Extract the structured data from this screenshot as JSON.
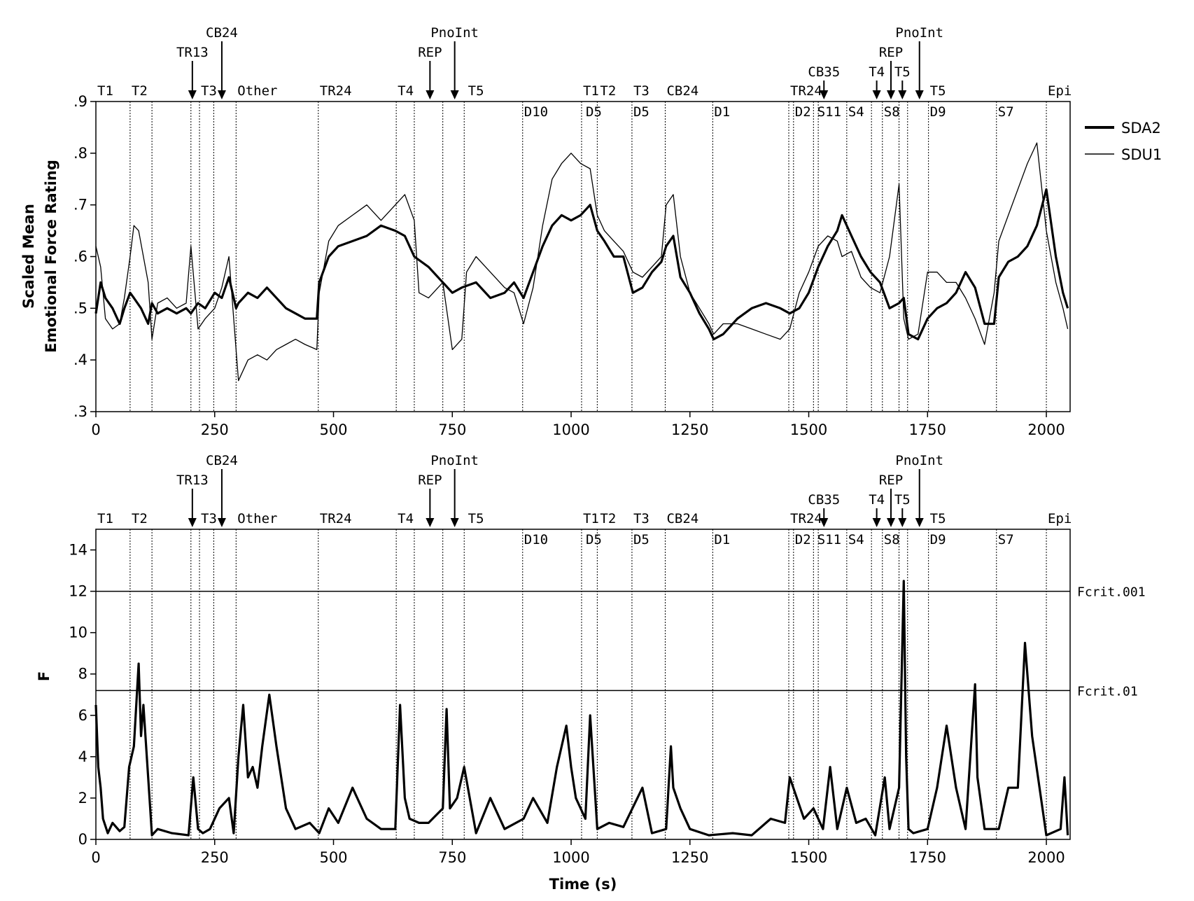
{
  "chart_data": [
    {
      "type": "line",
      "panel": "top",
      "ylabel_line1": "Scaled Mean",
      "ylabel_line2": "Emotional Force Rating",
      "xlim": [
        0,
        2050
      ],
      "ylim": [
        0.3,
        0.9
      ],
      "x_ticks": [
        0,
        250,
        500,
        750,
        1000,
        1250,
        1500,
        1750,
        2000
      ],
      "x_tick_labels": [
        "0",
        "250",
        "500",
        "750",
        "1000",
        "1250",
        "1500",
        "1750",
        "2000"
      ],
      "y_ticks": [
        0.3,
        0.4,
        0.5,
        0.6,
        0.7,
        0.8,
        0.9
      ],
      "y_tick_labels": [
        ".3",
        ".4",
        ".5",
        ".6",
        ".7",
        ".8",
        ".9"
      ],
      "legend_position": "right",
      "series": [
        {
          "name": "SDA2",
          "style": "thick",
          "x": [
            0,
            10,
            20,
            35,
            50,
            60,
            72,
            80,
            95,
            110,
            118,
            130,
            150,
            170,
            190,
            200,
            215,
            230,
            250,
            265,
            280,
            295,
            300,
            320,
            340,
            360,
            380,
            400,
            420,
            440,
            465,
            470,
            490,
            510,
            540,
            570,
            600,
            630,
            650,
            670,
            700,
            730,
            750,
            770,
            800,
            830,
            860,
            880,
            900,
            920,
            940,
            960,
            980,
            1000,
            1020,
            1040,
            1055,
            1070,
            1090,
            1110,
            1130,
            1150,
            1170,
            1190,
            1200,
            1215,
            1230,
            1250,
            1270,
            1290,
            1300,
            1320,
            1350,
            1380,
            1410,
            1440,
            1460,
            1480,
            1500,
            1520,
            1540,
            1560,
            1570,
            1590,
            1610,
            1630,
            1650,
            1670,
            1690,
            1700,
            1710,
            1730,
            1750,
            1770,
            1790,
            1810,
            1830,
            1850,
            1870,
            1890,
            1900,
            1920,
            1940,
            1960,
            1980,
            2000,
            2020,
            2035,
            2045
          ],
          "values": [
            0.49,
            0.55,
            0.52,
            0.5,
            0.47,
            0.5,
            0.53,
            0.52,
            0.5,
            0.47,
            0.51,
            0.49,
            0.5,
            0.49,
            0.5,
            0.49,
            0.51,
            0.5,
            0.53,
            0.52,
            0.56,
            0.5,
            0.51,
            0.53,
            0.52,
            0.54,
            0.52,
            0.5,
            0.49,
            0.48,
            0.48,
            0.55,
            0.6,
            0.62,
            0.63,
            0.64,
            0.66,
            0.65,
            0.64,
            0.6,
            0.58,
            0.55,
            0.53,
            0.54,
            0.55,
            0.52,
            0.53,
            0.55,
            0.52,
            0.57,
            0.62,
            0.66,
            0.68,
            0.67,
            0.68,
            0.7,
            0.65,
            0.63,
            0.6,
            0.6,
            0.53,
            0.54,
            0.57,
            0.59,
            0.62,
            0.64,
            0.56,
            0.53,
            0.49,
            0.46,
            0.44,
            0.45,
            0.48,
            0.5,
            0.51,
            0.5,
            0.49,
            0.5,
            0.53,
            0.58,
            0.62,
            0.65,
            0.68,
            0.64,
            0.6,
            0.57,
            0.55,
            0.5,
            0.51,
            0.52,
            0.45,
            0.44,
            0.48,
            0.5,
            0.51,
            0.53,
            0.57,
            0.54,
            0.47,
            0.47,
            0.56,
            0.59,
            0.6,
            0.62,
            0.66,
            0.73,
            0.6,
            0.53,
            0.5
          ]
        },
        {
          "name": "SDU1",
          "style": "thin",
          "x": [
            0,
            10,
            20,
            35,
            50,
            60,
            72,
            80,
            90,
            110,
            118,
            130,
            150,
            170,
            190,
            200,
            215,
            230,
            250,
            265,
            280,
            295,
            300,
            320,
            340,
            360,
            380,
            400,
            420,
            440,
            465,
            470,
            490,
            510,
            540,
            570,
            600,
            630,
            650,
            670,
            680,
            700,
            730,
            750,
            770,
            780,
            800,
            830,
            860,
            880,
            900,
            920,
            940,
            960,
            980,
            1000,
            1020,
            1040,
            1055,
            1070,
            1090,
            1110,
            1130,
            1150,
            1170,
            1190,
            1200,
            1215,
            1230,
            1250,
            1270,
            1290,
            1300,
            1320,
            1350,
            1380,
            1410,
            1440,
            1460,
            1480,
            1500,
            1520,
            1540,
            1560,
            1570,
            1590,
            1610,
            1630,
            1650,
            1670,
            1690,
            1700,
            1710,
            1730,
            1750,
            1770,
            1790,
            1810,
            1830,
            1850,
            1870,
            1890,
            1900,
            1920,
            1940,
            1960,
            1980,
            2000,
            2020,
            2035,
            2045
          ],
          "values": [
            0.62,
            0.58,
            0.48,
            0.46,
            0.47,
            0.52,
            0.6,
            0.66,
            0.65,
            0.55,
            0.44,
            0.51,
            0.52,
            0.5,
            0.51,
            0.62,
            0.46,
            0.48,
            0.5,
            0.54,
            0.6,
            0.42,
            0.36,
            0.4,
            0.41,
            0.4,
            0.42,
            0.43,
            0.44,
            0.43,
            0.42,
            0.53,
            0.63,
            0.66,
            0.68,
            0.7,
            0.67,
            0.7,
            0.72,
            0.67,
            0.53,
            0.52,
            0.55,
            0.42,
            0.44,
            0.57,
            0.6,
            0.57,
            0.54,
            0.53,
            0.47,
            0.54,
            0.66,
            0.75,
            0.78,
            0.8,
            0.78,
            0.77,
            0.68,
            0.65,
            0.63,
            0.61,
            0.57,
            0.56,
            0.58,
            0.6,
            0.7,
            0.72,
            0.6,
            0.53,
            0.5,
            0.47,
            0.45,
            0.47,
            0.47,
            0.46,
            0.45,
            0.44,
            0.46,
            0.53,
            0.57,
            0.62,
            0.64,
            0.63,
            0.6,
            0.61,
            0.56,
            0.54,
            0.53,
            0.6,
            0.74,
            0.48,
            0.44,
            0.45,
            0.57,
            0.57,
            0.55,
            0.55,
            0.52,
            0.48,
            0.43,
            0.53,
            0.63,
            0.68,
            0.73,
            0.78,
            0.82,
            0.65,
            0.55,
            0.5,
            0.46
          ]
        }
      ]
    },
    {
      "type": "line",
      "panel": "bottom",
      "xlabel": "Time (s)",
      "ylabel": "F",
      "xlim": [
        0,
        2050
      ],
      "ylim": [
        0,
        15
      ],
      "x_ticks": [
        0,
        250,
        500,
        750,
        1000,
        1250,
        1500,
        1750,
        2000
      ],
      "x_tick_labels": [
        "0",
        "250",
        "500",
        "750",
        "1000",
        "1250",
        "1500",
        "1750",
        "2000"
      ],
      "y_ticks": [
        0,
        2,
        4,
        6,
        8,
        10,
        12,
        14
      ],
      "y_tick_labels": [
        "0",
        "2",
        "4",
        "6",
        "8",
        "10",
        "12",
        "14"
      ],
      "reference_lines": [
        {
          "label": "Fcrit.001",
          "value": 12.0
        },
        {
          "label": "Fcrit.01",
          "value": 7.2
        }
      ],
      "series": [
        {
          "name": "",
          "style": "thick",
          "x": [
            0,
            5,
            10,
            15,
            25,
            35,
            50,
            60,
            70,
            80,
            90,
            95,
            100,
            110,
            118,
            130,
            160,
            195,
            205,
            215,
            225,
            240,
            260,
            280,
            290,
            300,
            310,
            320,
            330,
            340,
            350,
            365,
            380,
            400,
            420,
            450,
            470,
            490,
            510,
            540,
            570,
            600,
            630,
            640,
            650,
            660,
            680,
            700,
            730,
            738,
            745,
            760,
            775,
            800,
            830,
            860,
            900,
            920,
            950,
            970,
            990,
            1000,
            1010,
            1030,
            1040,
            1055,
            1080,
            1110,
            1150,
            1170,
            1200,
            1210,
            1215,
            1230,
            1250,
            1290,
            1340,
            1380,
            1420,
            1450,
            1460,
            1490,
            1510,
            1530,
            1545,
            1560,
            1580,
            1600,
            1620,
            1640,
            1660,
            1670,
            1690,
            1700,
            1705,
            1710,
            1720,
            1750,
            1770,
            1790,
            1810,
            1830,
            1850,
            1855,
            1870,
            1900,
            1920,
            1940,
            1955,
            1970,
            2000,
            2030,
            2038,
            2045
          ],
          "values": [
            6.5,
            3.5,
            2.5,
            1.0,
            0.3,
            0.8,
            0.4,
            0.6,
            3.5,
            4.5,
            8.5,
            5.0,
            6.5,
            3.0,
            0.2,
            0.5,
            0.3,
            0.2,
            3.0,
            0.5,
            0.3,
            0.5,
            1.5,
            2.0,
            0.3,
            4.0,
            6.5,
            3.0,
            3.5,
            2.5,
            4.5,
            7.0,
            4.5,
            1.5,
            0.5,
            0.8,
            0.3,
            1.5,
            0.8,
            2.5,
            1.0,
            0.5,
            0.5,
            6.5,
            2.0,
            1.0,
            0.8,
            0.8,
            1.5,
            6.3,
            1.5,
            2.0,
            3.5,
            0.3,
            2.0,
            0.5,
            1.0,
            2.0,
            0.8,
            3.5,
            5.5,
            3.5,
            2.0,
            1.0,
            6.0,
            0.5,
            0.8,
            0.6,
            2.5,
            0.3,
            0.5,
            4.5,
            2.5,
            1.5,
            0.5,
            0.2,
            0.3,
            0.2,
            1.0,
            0.8,
            3.0,
            1.0,
            1.5,
            0.5,
            3.5,
            0.5,
            2.5,
            0.8,
            1.0,
            0.2,
            3.0,
            0.5,
            2.5,
            12.5,
            4.0,
            0.5,
            0.3,
            0.5,
            2.5,
            5.5,
            2.5,
            0.5,
            7.5,
            3.0,
            0.5,
            0.5,
            2.5,
            2.5,
            9.5,
            5.0,
            0.2,
            0.5,
            3.0,
            0.2
          ]
        }
      ]
    }
  ],
  "segments_top": [
    {
      "label": "T1",
      "x": 0,
      "row": "upper"
    },
    {
      "label": "T2",
      "x": 72,
      "row": "upper"
    },
    {
      "label": "T3",
      "x": 218,
      "row": "upper"
    },
    {
      "label": "Other",
      "x": 295,
      "row": "upper"
    },
    {
      "label": "TR24",
      "x": 468,
      "row": "upper"
    },
    {
      "label": "T4",
      "x": 632,
      "row": "upper"
    },
    {
      "label": "T5",
      "x": 780,
      "row": "upper"
    },
    {
      "label": "T1",
      "x": 1022,
      "row": "upper"
    },
    {
      "label": "T2",
      "x": 1058,
      "row": "upper"
    },
    {
      "label": "T3",
      "x": 1128,
      "row": "upper"
    },
    {
      "label": "CB24",
      "x": 1198,
      "row": "upper"
    },
    {
      "label": "TR24",
      "x": 1458,
      "row": "upper"
    },
    {
      "label": "T5",
      "x": 1752,
      "row": "upper"
    },
    {
      "label": "Epi",
      "x": 2000,
      "row": "upper"
    },
    {
      "label": "D10",
      "x": 898,
      "row": "lower"
    },
    {
      "label": "D5",
      "x": 1028,
      "row": "lower"
    },
    {
      "label": "D5",
      "x": 1128,
      "row": "lower"
    },
    {
      "label": "D1",
      "x": 1298,
      "row": "lower"
    },
    {
      "label": "D2",
      "x": 1468,
      "row": "lower"
    },
    {
      "label": "S11",
      "x": 1515,
      "row": "lower"
    },
    {
      "label": "S4",
      "x": 1580,
      "row": "lower"
    },
    {
      "label": "S8",
      "x": 1655,
      "row": "lower"
    },
    {
      "label": "D9",
      "x": 1752,
      "row": "lower"
    },
    {
      "label": "S7",
      "x": 1895,
      "row": "lower"
    }
  ],
  "segments_bottom": [
    {
      "label": "T1",
      "x": 0,
      "row": "upper"
    },
    {
      "label": "T2",
      "x": 72,
      "row": "upper"
    },
    {
      "label": "T3",
      "x": 218,
      "row": "upper"
    },
    {
      "label": "Other",
      "x": 295,
      "row": "upper"
    },
    {
      "label": "TR24",
      "x": 468,
      "row": "upper"
    },
    {
      "label": "T4",
      "x": 632,
      "row": "upper"
    },
    {
      "label": "T5",
      "x": 780,
      "row": "upper"
    },
    {
      "label": "T1",
      "x": 1022,
      "row": "upper"
    },
    {
      "label": "T2",
      "x": 1058,
      "row": "upper"
    },
    {
      "label": "T3",
      "x": 1128,
      "row": "upper"
    },
    {
      "label": "CB24",
      "x": 1198,
      "row": "upper"
    },
    {
      "label": "TR24",
      "x": 1458,
      "row": "upper"
    },
    {
      "label": "T5",
      "x": 1752,
      "row": "upper"
    },
    {
      "label": "Epi",
      "x": 2000,
      "row": "upper"
    },
    {
      "label": "D10",
      "x": 898,
      "row": "lower"
    },
    {
      "label": "D5",
      "x": 1028,
      "row": "lower"
    },
    {
      "label": "D5",
      "x": 1128,
      "row": "lower"
    },
    {
      "label": "D1",
      "x": 1298,
      "row": "lower"
    },
    {
      "label": "D2",
      "x": 1468,
      "row": "lower"
    },
    {
      "label": "S11",
      "x": 1515,
      "row": "lower"
    },
    {
      "label": "S4",
      "x": 1580,
      "row": "lower"
    },
    {
      "label": "S8",
      "x": 1655,
      "row": "lower"
    },
    {
      "label": "D9",
      "x": 1752,
      "row": "lower"
    },
    {
      "label": "S7",
      "x": 1895,
      "row": "lower"
    }
  ],
  "boundaries": [
    72,
    118,
    200,
    218,
    248,
    295,
    468,
    632,
    670,
    730,
    775,
    898,
    1022,
    1055,
    1128,
    1198,
    1298,
    1458,
    1468,
    1510,
    1520,
    1580,
    1632,
    1655,
    1690,
    1708,
    1752,
    1895,
    2000
  ],
  "arrows_top": [
    {
      "label": "TR13",
      "x": 203,
      "level": 1
    },
    {
      "label": "CB24",
      "x": 265,
      "level": 2
    },
    {
      "label": "REP",
      "x": 703,
      "level": 1
    },
    {
      "label": "PnoInt",
      "x": 755,
      "level": 2
    },
    {
      "label": "CB35",
      "x": 1532,
      "level": 0
    },
    {
      "label": "T4",
      "x": 1643,
      "level": 0
    },
    {
      "label": "REP",
      "x": 1673,
      "level": 1
    },
    {
      "label": "T5",
      "x": 1697,
      "level": 0
    },
    {
      "label": "PnoInt",
      "x": 1733,
      "level": 2
    }
  ],
  "arrows_bottom": [
    {
      "label": "TR13",
      "x": 203,
      "level": 1
    },
    {
      "label": "CB24",
      "x": 265,
      "level": 2
    },
    {
      "label": "REP",
      "x": 703,
      "level": 1
    },
    {
      "label": "PnoInt",
      "x": 755,
      "level": 2
    },
    {
      "label": "CB35",
      "x": 1532,
      "level": 0
    },
    {
      "label": "T4",
      "x": 1643,
      "level": 0
    },
    {
      "label": "REP",
      "x": 1673,
      "level": 1
    },
    {
      "label": "T5",
      "x": 1697,
      "level": 0
    },
    {
      "label": "PnoInt",
      "x": 1733,
      "level": 2
    }
  ]
}
